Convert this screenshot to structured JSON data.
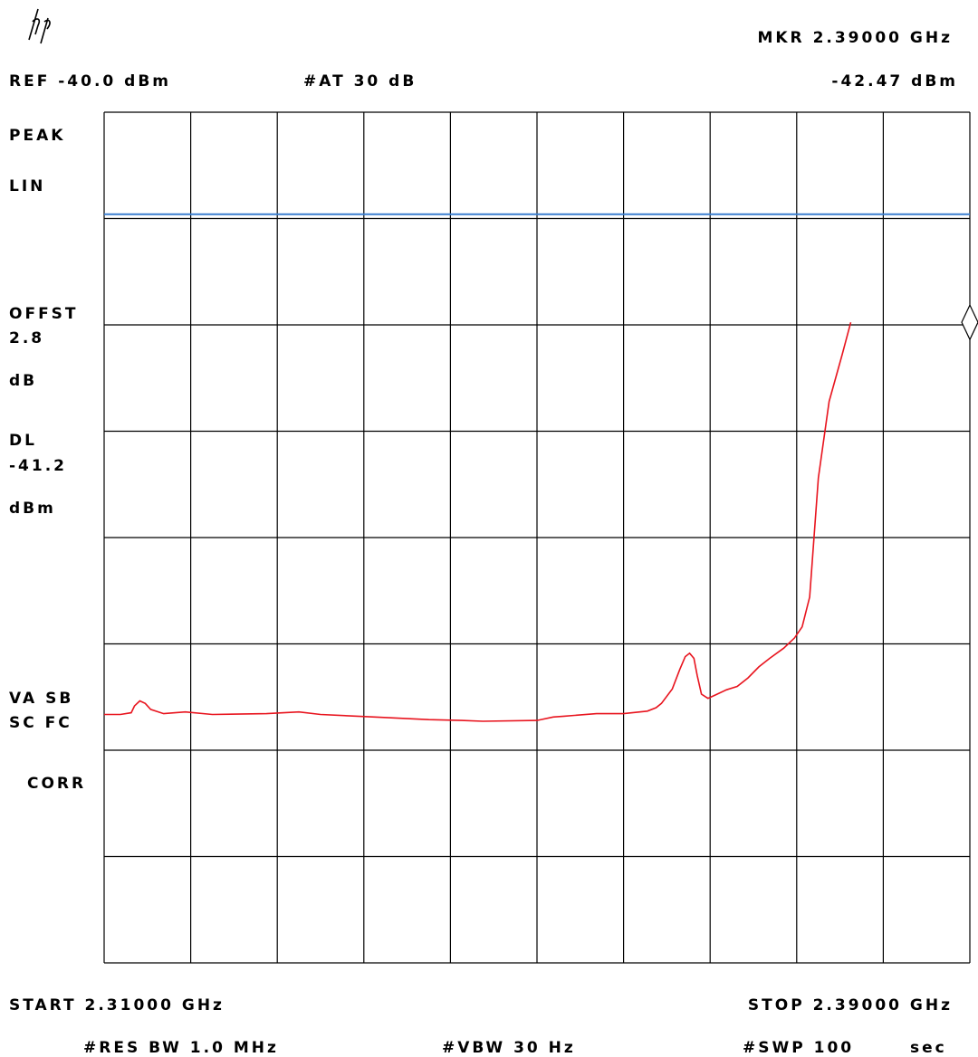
{
  "header": {
    "logo": "hp",
    "marker_freq": "MKR 2.39000 GHz",
    "ref_level": "REF -40.0 dBm",
    "attenuation": "#AT 30 dB",
    "marker_level": "-42.47 dBm"
  },
  "side_panel": {
    "detector": "PEAK",
    "scale": "LIN",
    "offset_label": "OFFST",
    "offset_value": "2.8",
    "offset_unit": "dB",
    "display_line_label": "DL",
    "display_line_value": "-41.2",
    "display_line_unit": "dBm",
    "status_1": "VA SB",
    "status_2": "SC FC",
    "correction": "CORR"
  },
  "footer": {
    "start": "START 2.31000 GHz",
    "stop": "STOP 2.39000 GHz",
    "rbw": "#RES BW 1.0 MHz",
    "vbw": "#VBW 30 Hz",
    "sweep_label": "#SWP 100",
    "sweep_unit": "sec"
  },
  "chart_data": {
    "type": "line",
    "x_unit": "GHz",
    "y_unit": "dBm",
    "xlim": [
      2.31,
      2.39
    ],
    "ylim": [
      -50,
      -40
    ],
    "grid": true,
    "divisions": {
      "x": 10,
      "y": 8
    },
    "display_line_dbm": -41.2,
    "marker": {
      "x": 2.39,
      "y": -42.47
    },
    "colors": {
      "trace": "#e8141e",
      "display_line": "#3a7fd0",
      "grid": "#000000"
    },
    "series": [
      {
        "points": [
          [
            2.31,
            -47.08
          ],
          [
            2.3115,
            -47.08
          ],
          [
            2.3125,
            -47.06
          ],
          [
            2.3128,
            -46.98
          ],
          [
            2.3133,
            -46.92
          ],
          [
            2.3138,
            -46.95
          ],
          [
            2.3143,
            -47.02
          ],
          [
            2.3155,
            -47.07
          ],
          [
            2.3175,
            -47.05
          ],
          [
            2.32,
            -47.08
          ],
          [
            2.325,
            -47.07
          ],
          [
            2.328,
            -47.05
          ],
          [
            2.33,
            -47.08
          ],
          [
            2.335,
            -47.11
          ],
          [
            2.34,
            -47.14
          ],
          [
            2.343,
            -47.15
          ],
          [
            2.345,
            -47.16
          ],
          [
            2.35,
            -47.15
          ],
          [
            2.3515,
            -47.11
          ],
          [
            2.3525,
            -47.1
          ],
          [
            2.3555,
            -47.07
          ],
          [
            2.358,
            -47.07
          ],
          [
            2.3602,
            -47.04
          ],
          [
            2.361,
            -47.0
          ],
          [
            2.3615,
            -46.95
          ],
          [
            2.3625,
            -46.78
          ],
          [
            2.3632,
            -46.55
          ],
          [
            2.3637,
            -46.4
          ],
          [
            2.3641,
            -46.36
          ],
          [
            2.3645,
            -46.42
          ],
          [
            2.3648,
            -46.62
          ],
          [
            2.3652,
            -46.84
          ],
          [
            2.3658,
            -46.89
          ],
          [
            2.3665,
            -46.85
          ],
          [
            2.3675,
            -46.79
          ],
          [
            2.3685,
            -46.75
          ],
          [
            2.3695,
            -46.65
          ],
          [
            2.3705,
            -46.52
          ],
          [
            2.3715,
            -46.42
          ],
          [
            2.3728,
            -46.3
          ],
          [
            2.3738,
            -46.18
          ],
          [
            2.3745,
            -46.05
          ],
          [
            2.3752,
            -45.7
          ],
          [
            2.376,
            -44.3
          ],
          [
            2.377,
            -43.4
          ],
          [
            2.3782,
            -42.85
          ],
          [
            2.379,
            -42.47
          ]
        ]
      }
    ]
  }
}
